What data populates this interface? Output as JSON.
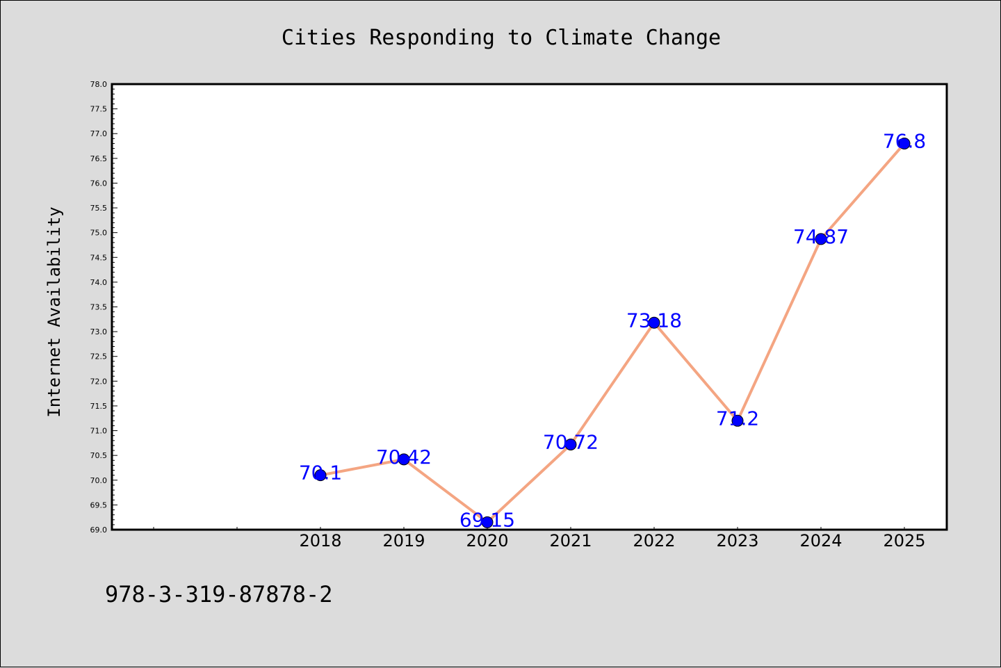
{
  "chart_data": {
    "type": "line",
    "title": "Cities Responding to Climate Change",
    "xlabel": "",
    "ylabel": "Internet Availability",
    "categories": [
      "2018",
      "2019",
      "2020",
      "2021",
      "2022",
      "2023",
      "2024",
      "2025"
    ],
    "series": [
      {
        "values": [
          70.1,
          70.42,
          69.15,
          70.72,
          73.18,
          71.2,
          74.87,
          76.8
        ],
        "labels": [
          "70.1",
          "70.42",
          "69.15",
          "70.72",
          "73.18",
          "71.2",
          "74.87",
          "76.8"
        ],
        "line_color": "#f4a582",
        "marker_color": "#0000ff"
      }
    ],
    "ylim": [
      69.0,
      78.0
    ],
    "ytick_step": 0.5,
    "grid": false,
    "legend": "none"
  },
  "footer_text": "978-3-319-87878-2"
}
